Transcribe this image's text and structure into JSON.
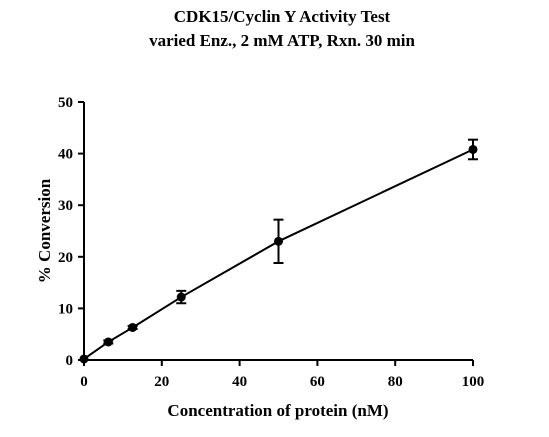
{
  "chart_data": {
    "type": "scatter",
    "title": "CDK15/Cyclin Y Activity Test",
    "subtitle": "varied Enz., 2 mM ATP, Rxn. 30 min",
    "xlabel": "Concentration of protein (nM)",
    "ylabel": "% Conversion",
    "xlim": [
      0,
      100
    ],
    "ylim": [
      0,
      50
    ],
    "x_ticks": [
      0,
      20,
      40,
      60,
      80,
      100
    ],
    "y_ticks": [
      0,
      10,
      20,
      30,
      40,
      50
    ],
    "grid": false,
    "legend": "none",
    "series": [
      {
        "x": [
          0,
          6.25,
          12.5,
          25,
          50,
          100
        ],
        "y": [
          0.2,
          3.5,
          6.3,
          12.2,
          23.0,
          40.8
        ],
        "error": [
          0,
          0.3,
          0.3,
          1.2,
          4.2,
          1.9
        ]
      }
    ],
    "colors": {
      "marker": "#000000",
      "line": "#000000"
    }
  }
}
